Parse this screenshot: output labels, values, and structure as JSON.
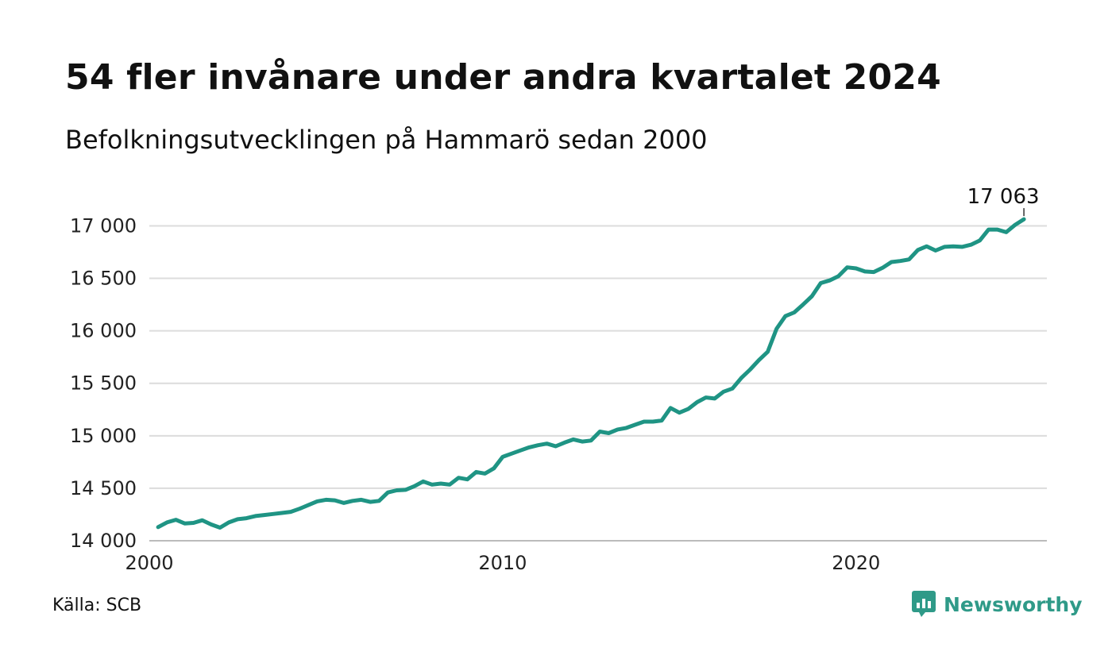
{
  "title": "54 fler invånare under andra kvartalet 2024",
  "subtitle": "Befolkningsutvecklingen på Hammarö sedan 2000",
  "source": "Källa: SCB",
  "brand": {
    "name": "Newsworthy",
    "icon": "newsworthy-logo-icon",
    "color": "#2f9a88"
  },
  "chart_data": {
    "type": "line",
    "title": "54 fler invånare under andra kvartalet 2024",
    "subtitle": "Befolkningsutvecklingen på Hammarö sedan 2000",
    "xlabel": "",
    "ylabel": "",
    "grid": true,
    "line_color": "#1f9484",
    "xlim": [
      2000,
      2025.4
    ],
    "ylim": [
      14000,
      17200
    ],
    "x_ticks": [
      2000,
      2010,
      2020
    ],
    "x_tick_labels": [
      "2000",
      "2010",
      "2020"
    ],
    "y_ticks": [
      14000,
      14500,
      15000,
      15500,
      16000,
      16500,
      17000
    ],
    "y_tick_labels": [
      "14 000",
      "14 500",
      "15 000",
      "15 500",
      "16 000",
      "16 500",
      "17 000"
    ],
    "end_label": "17 063",
    "series": [
      {
        "values": [
          [
            2000.25,
            14130
          ],
          [
            2000.5,
            14175
          ],
          [
            2000.75,
            14200
          ],
          [
            2001.0,
            14165
          ],
          [
            2001.25,
            14170
          ],
          [
            2001.5,
            14195
          ],
          [
            2001.75,
            14155
          ],
          [
            2002.0,
            14125
          ],
          [
            2002.25,
            14175
          ],
          [
            2002.5,
            14205
          ],
          [
            2002.75,
            14215
          ],
          [
            2003.0,
            14235
          ],
          [
            2003.25,
            14245
          ],
          [
            2003.5,
            14255
          ],
          [
            2003.75,
            14265
          ],
          [
            2004.0,
            14275
          ],
          [
            2004.25,
            14305
          ],
          [
            2004.5,
            14340
          ],
          [
            2004.75,
            14375
          ],
          [
            2005.0,
            14390
          ],
          [
            2005.25,
            14385
          ],
          [
            2005.5,
            14360
          ],
          [
            2005.75,
            14380
          ],
          [
            2006.0,
            14390
          ],
          [
            2006.25,
            14370
          ],
          [
            2006.5,
            14380
          ],
          [
            2006.75,
            14460
          ],
          [
            2007.0,
            14480
          ],
          [
            2007.25,
            14485
          ],
          [
            2007.5,
            14520
          ],
          [
            2007.75,
            14565
          ],
          [
            2008.0,
            14535
          ],
          [
            2008.25,
            14545
          ],
          [
            2008.5,
            14535
          ],
          [
            2008.75,
            14600
          ],
          [
            2009.0,
            14585
          ],
          [
            2009.25,
            14655
          ],
          [
            2009.5,
            14640
          ],
          [
            2009.75,
            14690
          ],
          [
            2010.0,
            14800
          ],
          [
            2010.25,
            14830
          ],
          [
            2010.5,
            14860
          ],
          [
            2010.75,
            14890
          ],
          [
            2011.0,
            14910
          ],
          [
            2011.25,
            14925
          ],
          [
            2011.5,
            14900
          ],
          [
            2011.75,
            14935
          ],
          [
            2012.0,
            14965
          ],
          [
            2012.25,
            14945
          ],
          [
            2012.5,
            14955
          ],
          [
            2012.75,
            15040
          ],
          [
            2013.0,
            15025
          ],
          [
            2013.25,
            15060
          ],
          [
            2013.5,
            15075
          ],
          [
            2013.75,
            15105
          ],
          [
            2014.0,
            15135
          ],
          [
            2014.25,
            15135
          ],
          [
            2014.5,
            15145
          ],
          [
            2014.75,
            15265
          ],
          [
            2015.0,
            15220
          ],
          [
            2015.25,
            15255
          ],
          [
            2015.5,
            15320
          ],
          [
            2015.75,
            15365
          ],
          [
            2016.0,
            15355
          ],
          [
            2016.25,
            15420
          ],
          [
            2016.5,
            15450
          ],
          [
            2016.75,
            15550
          ],
          [
            2017.0,
            15630
          ],
          [
            2017.25,
            15720
          ],
          [
            2017.5,
            15800
          ],
          [
            2017.75,
            16020
          ],
          [
            2018.0,
            16140
          ],
          [
            2018.25,
            16175
          ],
          [
            2018.5,
            16250
          ],
          [
            2018.75,
            16330
          ],
          [
            2019.0,
            16455
          ],
          [
            2019.25,
            16480
          ],
          [
            2019.5,
            16520
          ],
          [
            2019.75,
            16605
          ],
          [
            2020.0,
            16595
          ],
          [
            2020.25,
            16565
          ],
          [
            2020.5,
            16560
          ],
          [
            2020.75,
            16600
          ],
          [
            2021.0,
            16655
          ],
          [
            2021.25,
            16665
          ],
          [
            2021.5,
            16680
          ],
          [
            2021.75,
            16770
          ],
          [
            2022.0,
            16805
          ],
          [
            2022.25,
            16765
          ],
          [
            2022.5,
            16800
          ],
          [
            2022.75,
            16805
          ],
          [
            2023.0,
            16800
          ],
          [
            2023.25,
            16820
          ],
          [
            2023.5,
            16860
          ],
          [
            2023.75,
            16965
          ],
          [
            2024.0,
            16965
          ],
          [
            2024.25,
            16940
          ],
          [
            2024.5,
            17009
          ],
          [
            2024.75,
            17063
          ]
        ]
      }
    ]
  }
}
